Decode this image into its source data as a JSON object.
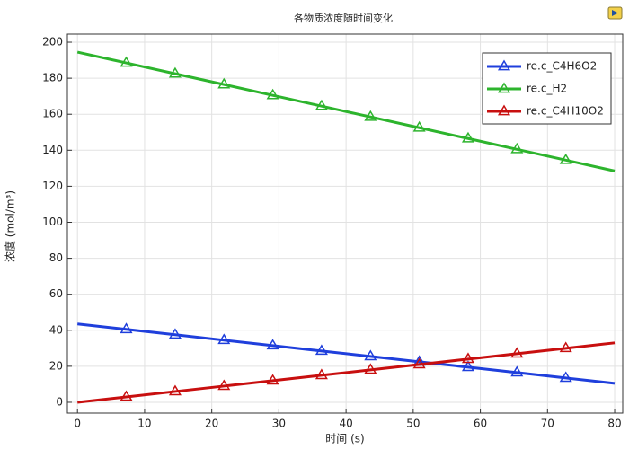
{
  "chart_data": {
    "type": "line",
    "title": "各物质浓度随时间变化",
    "x_label": "时间 (s)",
    "y_label": "浓度 (mol/m³)",
    "x": [
      0,
      7.27,
      14.55,
      21.82,
      29.09,
      36.36,
      43.64,
      50.91,
      58.18,
      65.45,
      72.73,
      80
    ],
    "series": [
      {
        "name": "re.c_C4H6O2",
        "color": "#1f3fdc",
        "values": [
          43.5,
          40.5,
          37.5,
          34.5,
          31.5,
          28.5,
          25.5,
          22.5,
          19.5,
          16.5,
          13.5,
          10.5
        ]
      },
      {
        "name": "re.c_H2",
        "color": "#2db42d",
        "values": [
          194.5,
          188.5,
          182.5,
          176.5,
          170.5,
          164.5,
          158.5,
          152.5,
          146.5,
          140.5,
          134.5,
          128.5
        ]
      },
      {
        "name": "re.c_C4H10O2",
        "color": "#c80f0f",
        "values": [
          0,
          3,
          6,
          9,
          12,
          15,
          18,
          21,
          24,
          27,
          30,
          33
        ]
      }
    ],
    "xlim": [
      -1.5,
      81.2
    ],
    "ylim": [
      -6,
      204.5
    ],
    "xticks": [
      0,
      10,
      20,
      30,
      40,
      50,
      60,
      70,
      80
    ],
    "yticks": [
      0,
      20,
      40,
      60,
      80,
      100,
      120,
      140,
      160,
      180,
      200
    ],
    "grid": true,
    "legend": "upper right",
    "marker": "triangle"
  }
}
